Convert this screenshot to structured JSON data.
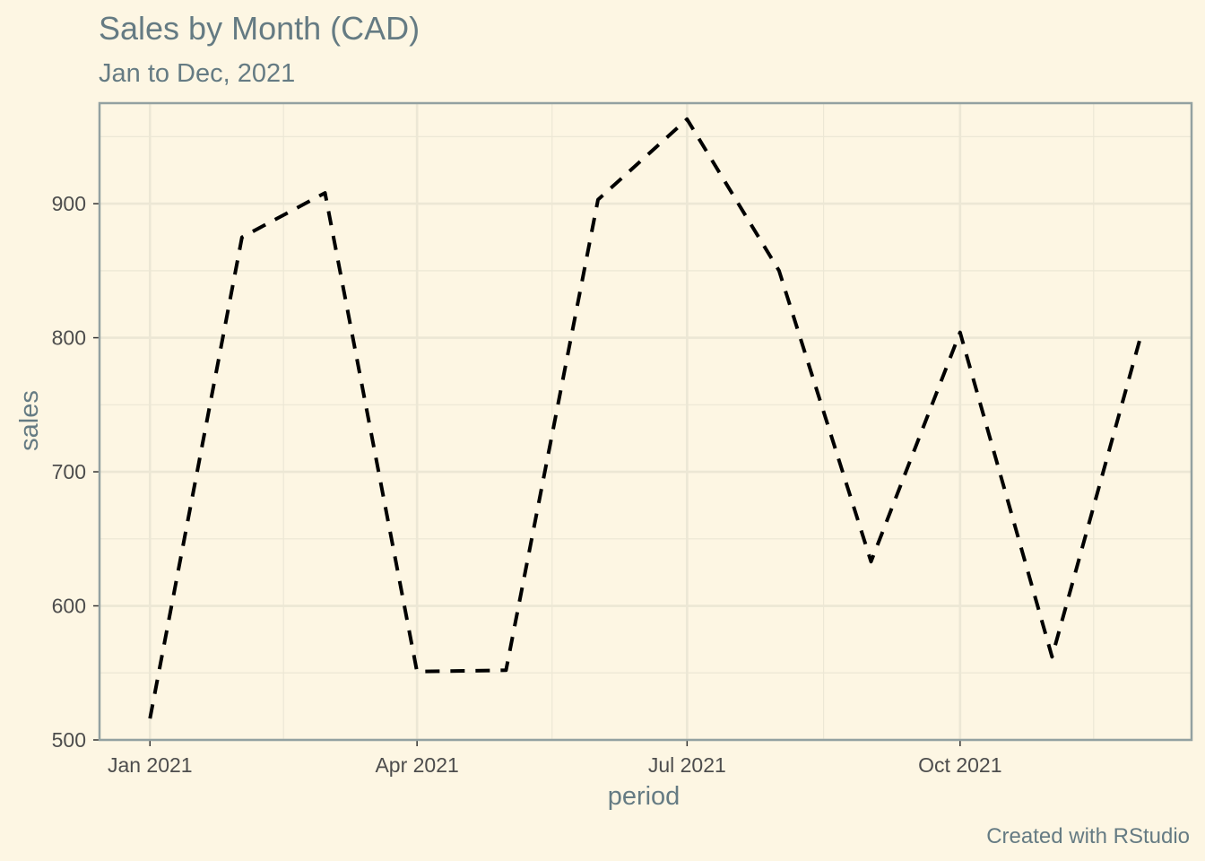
{
  "chart_data": {
    "type": "line",
    "title": "Sales by Month (CAD)",
    "subtitle": "Jan to Dec, 2021",
    "caption": "Created with RStudio",
    "xlabel": "period",
    "ylabel": "sales",
    "x": [
      "2021-01-01",
      "2021-02-01",
      "2021-03-01",
      "2021-04-01",
      "2021-05-01",
      "2021-06-01",
      "2021-07-01",
      "2021-08-01",
      "2021-09-01",
      "2021-10-01",
      "2021-11-01",
      "2021-12-01"
    ],
    "series": [
      {
        "values": [
          516,
          875,
          908,
          551,
          552,
          903,
          963,
          850,
          633,
          804,
          562,
          802
        ]
      }
    ],
    "x_ticks": [
      {
        "x": "2021-01-01",
        "label": "Jan 2021"
      },
      {
        "x": "2021-04-01",
        "label": "Apr 2021"
      },
      {
        "x": "2021-07-01",
        "label": "Jul 2021"
      },
      {
        "x": "2021-10-01",
        "label": "Oct 2021"
      }
    ],
    "y_ticks": [
      500,
      600,
      700,
      800,
      900
    ],
    "ylim": [
      500,
      975
    ],
    "xlim": [
      "2020-12-15",
      "2021-12-18"
    ],
    "grid": true,
    "line_style": "dashed",
    "colors": {
      "background": "#fdf6e3",
      "line": "#000000",
      "grid": "#ece7d5",
      "frame": "#93a1a1"
    }
  }
}
